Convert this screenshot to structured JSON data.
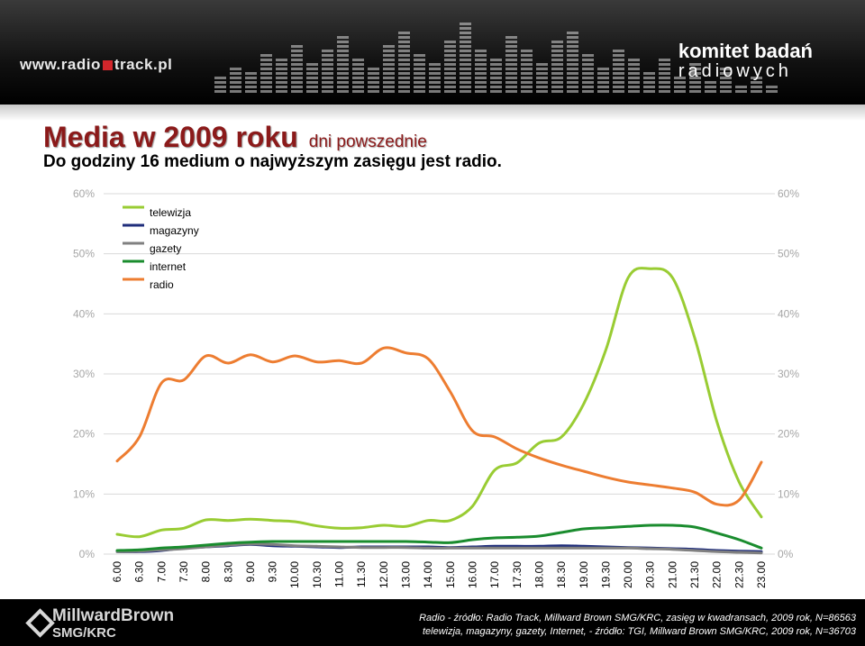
{
  "header": {
    "site_logo": "www.radio",
    "site_logo_tail": "track.pl",
    "org_logo_line1": "komitet badań",
    "org_logo_line2": "radiowych"
  },
  "title": "Media w 2009 roku",
  "title_sub": "dni powszednie",
  "subtitle": "Do godziny 16 medium o najwyższym zasięgu jest radio.",
  "footer": {
    "logo_line1": "MillwardBrown",
    "logo_line2": "SMG/KRC",
    "source_line1": "Radio - źródło: Radio Track, Millward Brown SMG/KRC, zasięg w kwadransach, 2009 rok, N=86563",
    "source_line2": "telewizja, magazyny, gazety, Internet, - źródło: TGI, Millward Brown SMG/KRC, 2009 rok, N=36703"
  },
  "chart_data": {
    "type": "line",
    "ylim": [
      0,
      60
    ],
    "y_ticks": [
      "0%",
      "10%",
      "20%",
      "30%",
      "40%",
      "50%",
      "60%"
    ],
    "x_tick_labels": [
      "6.00",
      "6.30",
      "7.00",
      "7.30",
      "8.00",
      "8.30",
      "9.00",
      "9.30",
      "10.00",
      "10.30",
      "11.00",
      "11.30",
      "12.00",
      "13.00",
      "14.00",
      "15.00",
      "16.00",
      "17.00",
      "17.30",
      "18.00",
      "18.30",
      "19.00",
      "19.30",
      "20.00",
      "20.30",
      "21.00",
      "21.30",
      "22.00",
      "22.30",
      "23.00"
    ],
    "legend_position": "top-left",
    "grid": "horizontal",
    "series": [
      {
        "name": "telewizja",
        "color": "#99cc33",
        "values": [
          3.3,
          2.9,
          4.0,
          4.3,
          5.7,
          5.6,
          5.8,
          5.6,
          5.4,
          4.7,
          4.3,
          4.4,
          4.8,
          4.6,
          5.6,
          5.6,
          8.0,
          14.0,
          15.2,
          18.5,
          19.5,
          25.0,
          34.0,
          46.0,
          47.5,
          46.0,
          36.0,
          22.0,
          12.0,
          6.2
        ]
      },
      {
        "name": "magazyny",
        "color": "#1f2d7b",
        "values": [
          0.4,
          0.4,
          0.6,
          1.0,
          1.2,
          1.4,
          1.6,
          1.4,
          1.3,
          1.2,
          1.1,
          1.2,
          1.2,
          1.2,
          1.2,
          1.1,
          1.2,
          1.3,
          1.3,
          1.3,
          1.4,
          1.3,
          1.2,
          1.1,
          1.0,
          0.9,
          0.8,
          0.6,
          0.5,
          0.4
        ]
      },
      {
        "name": "gazety",
        "color": "#808080",
        "values": [
          0.4,
          0.5,
          0.7,
          0.9,
          1.2,
          1.5,
          1.7,
          1.6,
          1.4,
          1.3,
          1.2,
          1.1,
          1.1,
          1.1,
          1.0,
          1.0,
          1.0,
          1.0,
          1.0,
          1.0,
          1.0,
          1.0,
          1.0,
          1.0,
          0.9,
          0.8,
          0.6,
          0.4,
          0.3,
          0.2
        ]
      },
      {
        "name": "internet",
        "color": "#1a8c2e",
        "values": [
          0.6,
          0.7,
          1.0,
          1.2,
          1.5,
          1.8,
          2.0,
          2.1,
          2.1,
          2.1,
          2.1,
          2.1,
          2.1,
          2.1,
          2.0,
          1.9,
          2.4,
          2.7,
          2.8,
          3.0,
          3.6,
          4.2,
          4.4,
          4.6,
          4.8,
          4.8,
          4.5,
          3.5,
          2.4,
          1.0
        ]
      },
      {
        "name": "radio",
        "color": "#ed7d31",
        "values": [
          15.5,
          19.5,
          28.5,
          29.0,
          33.0,
          31.8,
          33.2,
          32.0,
          33.0,
          32.0,
          32.2,
          31.8,
          34.3,
          33.5,
          32.5,
          27.0,
          20.5,
          19.5,
          17.5,
          16.0,
          14.8,
          13.8,
          12.8,
          12.0,
          11.5,
          11.0,
          10.3,
          8.3,
          9.0,
          15.3
        ]
      }
    ]
  }
}
